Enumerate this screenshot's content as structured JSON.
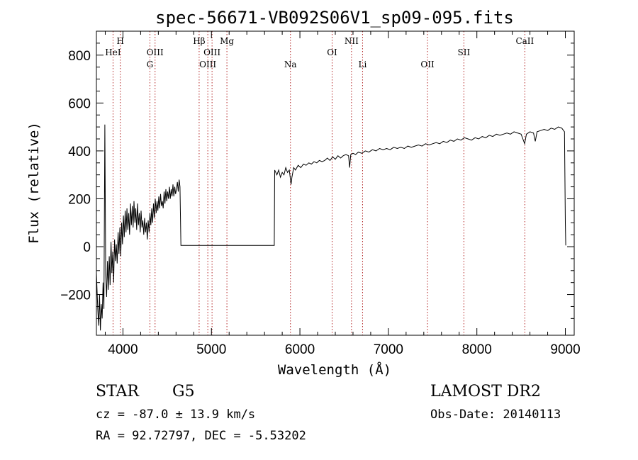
{
  "chart_data": {
    "type": "line",
    "title": "spec-56671-VB092S06V1_sp09-095.fits",
    "xlabel": "Wavelength (Å)",
    "ylabel": "Flux (relative)",
    "xlim": [
      3700,
      9100
    ],
    "ylim": [
      -370,
      900
    ],
    "x_ticks": [
      4000,
      5000,
      6000,
      7000,
      8000,
      9000
    ],
    "y_ticks": [
      -200,
      0,
      200,
      400,
      600,
      800
    ],
    "grid": false,
    "series": [
      {
        "points": [
          [
            3700,
            -110
          ],
          [
            3715,
            -260
          ],
          [
            3725,
            -330
          ],
          [
            3735,
            -200
          ],
          [
            3745,
            -350
          ],
          [
            3755,
            -240
          ],
          [
            3765,
            -300
          ],
          [
            3775,
            -150
          ],
          [
            3785,
            -260
          ],
          [
            3795,
            510
          ],
          [
            3805,
            -120
          ],
          [
            3815,
            -210
          ],
          [
            3825,
            -60
          ],
          [
            3835,
            -180
          ],
          [
            3845,
            -40
          ],
          [
            3855,
            -160
          ],
          [
            3865,
            20
          ],
          [
            3875,
            -110
          ],
          [
            3885,
            -20
          ],
          [
            3895,
            -150
          ],
          [
            3905,
            30
          ],
          [
            3915,
            -60
          ],
          [
            3925,
            10
          ],
          [
            3935,
            -70
          ],
          [
            3945,
            60
          ],
          [
            3955,
            -30
          ],
          [
            3965,
            80
          ],
          [
            3975,
            -40
          ],
          [
            3985,
            100
          ],
          [
            3995,
            10
          ],
          [
            4005,
            130
          ],
          [
            4015,
            40
          ],
          [
            4025,
            150
          ],
          [
            4035,
            60
          ],
          [
            4045,
            160
          ],
          [
            4055,
            70
          ],
          [
            4065,
            140
          ],
          [
            4075,
            50
          ],
          [
            4085,
            180
          ],
          [
            4095,
            90
          ],
          [
            4105,
            170
          ],
          [
            4115,
            80
          ],
          [
            4125,
            190
          ],
          [
            4135,
            100
          ],
          [
            4145,
            160
          ],
          [
            4155,
            70
          ],
          [
            4165,
            180
          ],
          [
            4175,
            90
          ],
          [
            4185,
            140
          ],
          [
            4195,
            60
          ],
          [
            4205,
            150
          ],
          [
            4215,
            80
          ],
          [
            4225,
            110
          ],
          [
            4235,
            50
          ],
          [
            4245,
            120
          ],
          [
            4255,
            60
          ],
          [
            4265,
            100
          ],
          [
            4275,
            30
          ],
          [
            4285,
            110
          ],
          [
            4295,
            60
          ],
          [
            4305,
            140
          ],
          [
            4315,
            90
          ],
          [
            4325,
            160
          ],
          [
            4335,
            100
          ],
          [
            4345,
            180
          ],
          [
            4355,
            120
          ],
          [
            4365,
            200
          ],
          [
            4375,
            140
          ],
          [
            4385,
            190
          ],
          [
            4395,
            150
          ],
          [
            4405,
            210
          ],
          [
            4415,
            160
          ],
          [
            4425,
            220
          ],
          [
            4435,
            170
          ],
          [
            4445,
            190
          ],
          [
            4455,
            160
          ],
          [
            4465,
            230
          ],
          [
            4475,
            180
          ],
          [
            4485,
            240
          ],
          [
            4495,
            190
          ],
          [
            4505,
            230
          ],
          [
            4515,
            200
          ],
          [
            4525,
            250
          ],
          [
            4535,
            200
          ],
          [
            4545,
            240
          ],
          [
            4555,
            210
          ],
          [
            4565,
            260
          ],
          [
            4575,
            210
          ],
          [
            4585,
            250
          ],
          [
            4595,
            220
          ],
          [
            4605,
            240
          ],
          [
            4615,
            270
          ],
          [
            4625,
            230
          ],
          [
            4635,
            280
          ],
          [
            4645,
            250
          ],
          [
            4655,
            5
          ],
          [
            5710,
            5
          ],
          [
            5715,
            320
          ],
          [
            5740,
            300
          ],
          [
            5760,
            320
          ],
          [
            5780,
            290
          ],
          [
            5800,
            310
          ],
          [
            5820,
            300
          ],
          [
            5840,
            330
          ],
          [
            5860,
            310
          ],
          [
            5880,
            320
          ],
          [
            5900,
            260
          ],
          [
            5910,
            290
          ],
          [
            5930,
            330
          ],
          [
            5950,
            320
          ],
          [
            5980,
            340
          ],
          [
            6010,
            330
          ],
          [
            6040,
            345
          ],
          [
            6070,
            340
          ],
          [
            6100,
            350
          ],
          [
            6130,
            345
          ],
          [
            6160,
            355
          ],
          [
            6190,
            350
          ],
          [
            6220,
            360
          ],
          [
            6250,
            355
          ],
          [
            6280,
            360
          ],
          [
            6310,
            370
          ],
          [
            6340,
            360
          ],
          [
            6370,
            375
          ],
          [
            6400,
            365
          ],
          [
            6430,
            380
          ],
          [
            6460,
            370
          ],
          [
            6490,
            380
          ],
          [
            6520,
            385
          ],
          [
            6550,
            380
          ],
          [
            6562,
            330
          ],
          [
            6575,
            385
          ],
          [
            6600,
            390
          ],
          [
            6630,
            385
          ],
          [
            6660,
            395
          ],
          [
            6700,
            390
          ],
          [
            6740,
            400
          ],
          [
            6780,
            395
          ],
          [
            6820,
            405
          ],
          [
            6860,
            400
          ],
          [
            6900,
            410
          ],
          [
            6940,
            405
          ],
          [
            6980,
            410
          ],
          [
            7020,
            405
          ],
          [
            7060,
            415
          ],
          [
            7100,
            410
          ],
          [
            7140,
            415
          ],
          [
            7180,
            410
          ],
          [
            7220,
            420
          ],
          [
            7260,
            415
          ],
          [
            7300,
            420
          ],
          [
            7340,
            425
          ],
          [
            7380,
            420
          ],
          [
            7420,
            430
          ],
          [
            7460,
            425
          ],
          [
            7500,
            430
          ],
          [
            7540,
            435
          ],
          [
            7580,
            430
          ],
          [
            7620,
            440
          ],
          [
            7660,
            435
          ],
          [
            7700,
            445
          ],
          [
            7740,
            440
          ],
          [
            7780,
            450
          ],
          [
            7820,
            445
          ],
          [
            7860,
            455
          ],
          [
            7900,
            450
          ],
          [
            7940,
            445
          ],
          [
            7980,
            455
          ],
          [
            8020,
            450
          ],
          [
            8060,
            460
          ],
          [
            8100,
            455
          ],
          [
            8140,
            465
          ],
          [
            8180,
            460
          ],
          [
            8220,
            470
          ],
          [
            8260,
            465
          ],
          [
            8300,
            470
          ],
          [
            8340,
            475
          ],
          [
            8380,
            470
          ],
          [
            8420,
            480
          ],
          [
            8460,
            475
          ],
          [
            8500,
            470
          ],
          [
            8540,
            430
          ],
          [
            8560,
            470
          ],
          [
            8600,
            480
          ],
          [
            8640,
            475
          ],
          [
            8660,
            440
          ],
          [
            8680,
            480
          ],
          [
            8720,
            485
          ],
          [
            8760,
            490
          ],
          [
            8800,
            485
          ],
          [
            8840,
            495
          ],
          [
            8880,
            490
          ],
          [
            8920,
            500
          ],
          [
            8960,
            495
          ],
          [
            8990,
            480
          ],
          [
            9000,
            100
          ],
          [
            9005,
            5
          ]
        ]
      }
    ],
    "lines": [
      {
        "label": "HeI",
        "x": 3888,
        "row": 2
      },
      {
        "label": "H",
        "x": 3970,
        "row": 1
      },
      {
        "label": "G",
        "x": 4305,
        "row": 3
      },
      {
        "label": "OIII",
        "x": 4363,
        "row": 2
      },
      {
        "label": "Hβ",
        "x": 4861,
        "row": 1
      },
      {
        "label": "OIII",
        "x": 4959,
        "row": 3
      },
      {
        "label": "OIII",
        "x": 5007,
        "row": 2
      },
      {
        "label": "Mg",
        "x": 5175,
        "row": 1
      },
      {
        "label": "Na",
        "x": 5893,
        "row": 3
      },
      {
        "label": "OI",
        "x": 6364,
        "row": 2
      },
      {
        "label": "NII",
        "x": 6583,
        "row": 1
      },
      {
        "label": "Li",
        "x": 6708,
        "row": 3
      },
      {
        "label": "OII",
        "x": 7442,
        "row": 3
      },
      {
        "label": "SII",
        "x": 7853,
        "row": 2
      },
      {
        "label": "CaII",
        "x": 8542,
        "row": 1
      }
    ]
  },
  "info": {
    "class_text": "STAR",
    "subclass_text": "G5",
    "survey_text": "LAMOST DR2",
    "cz_text": "cz = -87.0 ± 13.9 km/s",
    "obsdate_text": "Obs-Date: 20140113",
    "radec_text": "RA =  92.72797, DEC =  -5.53202"
  }
}
